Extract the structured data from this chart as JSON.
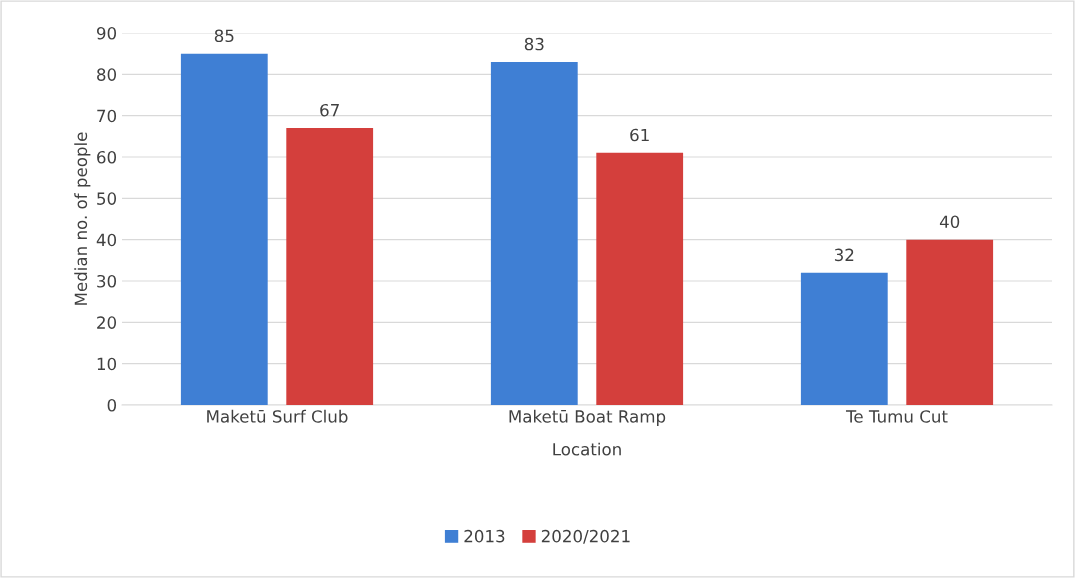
{
  "chart_data": {
    "type": "bar",
    "xlabel": "Location",
    "ylabel": "Median no. of people",
    "categories": [
      "Maketū Surf Club",
      "Maketū Boat Ramp",
      "Te Tumu Cut"
    ],
    "series": [
      {
        "name": "2013",
        "color": "#3f7fd4",
        "values": [
          85,
          83,
          32
        ]
      },
      {
        "name": "2020/2021",
        "color": "#d43f3c",
        "values": [
          67,
          61,
          40
        ]
      }
    ],
    "ylim": [
      0,
      90
    ],
    "yticks": [
      0,
      10,
      20,
      30,
      40,
      50,
      60,
      70,
      80,
      90
    ],
    "grid": "y",
    "legend": "bottom",
    "data_labels": true
  }
}
